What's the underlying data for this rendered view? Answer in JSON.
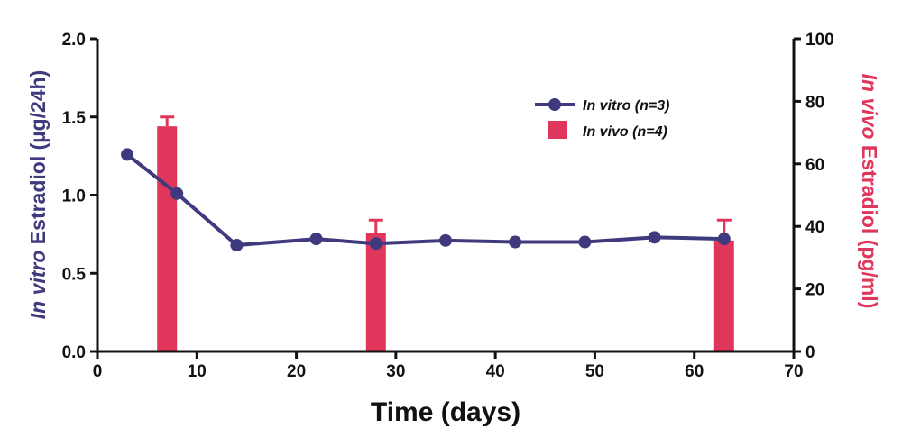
{
  "chart_data": {
    "type": "bar+line",
    "xlabel": "Time (days)",
    "ylabel_left": {
      "italic": "In vitro",
      "rest": " Estradiol (µg/24h)"
    },
    "ylabel_right": {
      "italic": "In vivo",
      "rest": " Estradiol (pg/ml)"
    },
    "xlim": [
      0,
      70
    ],
    "ylim_left": [
      0,
      2.0
    ],
    "ylim_right": [
      0,
      100
    ],
    "x_ticks": [
      "0",
      "10",
      "20",
      "30",
      "40",
      "50",
      "60",
      "70"
    ],
    "y_left_ticks": [
      "0.0",
      "0.5",
      "1.0",
      "1.5",
      "2.0"
    ],
    "y_right_ticks": [
      "0",
      "20",
      "40",
      "60",
      "80",
      "100"
    ],
    "grid": false,
    "legend_position": "top-right",
    "colors": {
      "line": "#3f3a7e",
      "bar": "#e0365c"
    },
    "line_series": {
      "name": "In vitro (n=3)",
      "axis": "left",
      "x": [
        3,
        8,
        14,
        22,
        28,
        35,
        42,
        49,
        56,
        63
      ],
      "y": [
        1.26,
        1.01,
        0.68,
        0.72,
        0.69,
        0.71,
        0.7,
        0.7,
        0.73,
        0.72
      ]
    },
    "bar_series": {
      "name": "In vivo (n=4)",
      "axis": "right",
      "x": [
        7,
        28,
        63
      ],
      "y": [
        72,
        38,
        35.5
      ],
      "error_upper": [
        75,
        42,
        42
      ]
    }
  }
}
